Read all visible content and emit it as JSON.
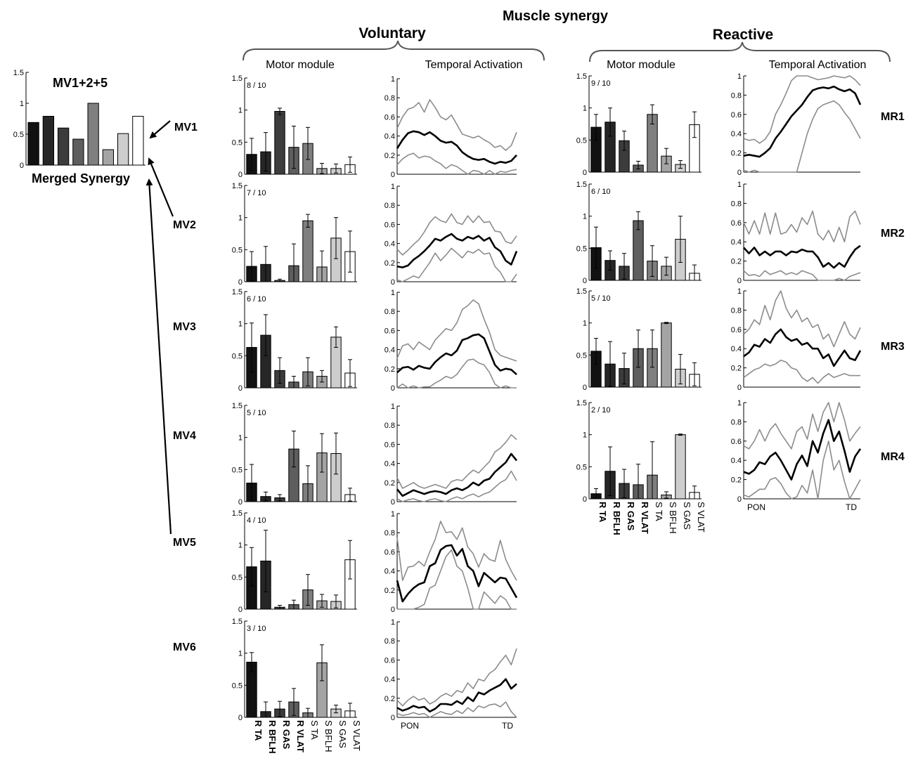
{
  "figure": {
    "title": "Muscle synergy",
    "group_voluntary": "Voluntary",
    "group_reactive": "Reactive",
    "col_motor_module": "Motor module",
    "col_temporal_activation": "Temporal Activation",
    "merged_title": "MV1+2+5",
    "merged_label": "Merged Synergy",
    "x_start_label": "PON",
    "x_end_label": "TD"
  },
  "muscles": [
    "R TA",
    "R BFLH",
    "R GAS",
    "R VLAT",
    "S TA",
    "S BFLH",
    "S GAS",
    "S VLAT"
  ],
  "colors": {
    "bars": [
      "#111111",
      "#262626",
      "#3c3c3c",
      "#5e5e5e",
      "#7f7f7f",
      "#a4a4a4",
      "#cdcdcd",
      "#ffffff"
    ],
    "mean_line": "#000000",
    "sd_line": "#8c8c8c"
  },
  "chart_data": [
    {
      "type": "bar",
      "title": "MV1+2+5",
      "xlabel": "Merged Synergy",
      "categories": [
        "R TA",
        "R BFLH",
        "R GAS",
        "R VLAT",
        "S TA",
        "S BFLH",
        "S GAS",
        "S VLAT"
      ],
      "values": [
        0.69,
        0.79,
        0.6,
        0.42,
        1.0,
        0.25,
        0.51,
        0.79
      ],
      "ylim": [
        0,
        1.5
      ]
    },
    {
      "type": "bar",
      "name": "MV1",
      "count": "8 / 10",
      "categories": [
        "R TA",
        "R BFLH",
        "R GAS",
        "R VLAT",
        "S TA",
        "S BFLH",
        "S GAS",
        "S VLAT"
      ],
      "values": [
        0.31,
        0.35,
        0.98,
        0.42,
        0.48,
        0.09,
        0.09,
        0.15
      ],
      "errors": [
        0.25,
        0.3,
        0.05,
        0.33,
        0.25,
        0.08,
        0.07,
        0.12
      ],
      "ylim": [
        0,
        1.5
      ]
    },
    {
      "type": "bar",
      "name": "MV2",
      "count": "7 / 10",
      "categories": [
        "R TA",
        "R BFLH",
        "R GAS",
        "R VLAT",
        "S TA",
        "S BFLH",
        "S GAS",
        "S VLAT"
      ],
      "values": [
        0.24,
        0.27,
        0.02,
        0.25,
        0.95,
        0.23,
        0.68,
        0.47
      ],
      "errors": [
        0.23,
        0.28,
        0.02,
        0.34,
        0.1,
        0.25,
        0.32,
        0.32
      ],
      "ylim": [
        0,
        1.5
      ]
    },
    {
      "type": "bar",
      "name": "MV3",
      "count": "6 / 10",
      "categories": [
        "R TA",
        "R BFLH",
        "R GAS",
        "R VLAT",
        "S TA",
        "S BFLH",
        "S GAS",
        "S VLAT"
      ],
      "values": [
        0.63,
        0.82,
        0.27,
        0.09,
        0.25,
        0.18,
        0.79,
        0.23
      ],
      "errors": [
        0.38,
        0.32,
        0.2,
        0.09,
        0.22,
        0.09,
        0.16,
        0.21
      ],
      "ylim": [
        0,
        1.5
      ]
    },
    {
      "type": "bar",
      "name": "MV4",
      "count": "5 / 10",
      "categories": [
        "R TA",
        "R BFLH",
        "R GAS",
        "R VLAT",
        "S TA",
        "S BFLH",
        "S GAS",
        "S VLAT"
      ],
      "values": [
        0.29,
        0.08,
        0.06,
        0.82,
        0.28,
        0.76,
        0.75,
        0.11
      ],
      "errors": [
        0.29,
        0.07,
        0.05,
        0.28,
        0.28,
        0.3,
        0.32,
        0.1
      ],
      "ylim": [
        0,
        1.5
      ]
    },
    {
      "type": "bar",
      "name": "MV5",
      "count": "4 / 10",
      "categories": [
        "R TA",
        "R BFLH",
        "R GAS",
        "R VLAT",
        "S TA",
        "S BFLH",
        "S GAS",
        "S VLAT"
      ],
      "values": [
        0.66,
        0.75,
        0.03,
        0.07,
        0.3,
        0.13,
        0.12,
        0.77
      ],
      "errors": [
        0.3,
        0.48,
        0.03,
        0.07,
        0.24,
        0.1,
        0.1,
        0.3
      ],
      "ylim": [
        0,
        1.5
      ]
    },
    {
      "type": "bar",
      "name": "MV6",
      "count": "3 / 10",
      "categories": [
        "R TA",
        "R BFLH",
        "R GAS",
        "R VLAT",
        "S TA",
        "S BFLH",
        "S GAS",
        "S VLAT"
      ],
      "values": [
        0.86,
        0.09,
        0.13,
        0.24,
        0.07,
        0.85,
        0.13,
        0.1
      ],
      "errors": [
        0.15,
        0.15,
        0.12,
        0.21,
        0.07,
        0.28,
        0.06,
        0.12
      ],
      "ylim": [
        0,
        1.5
      ]
    },
    {
      "type": "bar",
      "name": "MR1",
      "count": "9 / 10",
      "categories": [
        "R TA",
        "R BFLH",
        "R GAS",
        "R VLAT",
        "S TA",
        "S BFLH",
        "S GAS",
        "S VLAT"
      ],
      "values": [
        0.7,
        0.78,
        0.49,
        0.11,
        0.9,
        0.25,
        0.12,
        0.74
      ],
      "errors": [
        0.2,
        0.22,
        0.15,
        0.06,
        0.15,
        0.12,
        0.06,
        0.2
      ],
      "ylim": [
        0,
        1.5
      ]
    },
    {
      "type": "bar",
      "name": "MR2",
      "count": "6 / 10",
      "categories": [
        "R TA",
        "R BFLH",
        "R GAS",
        "R VLAT",
        "S TA",
        "S BFLH",
        "S GAS",
        "S VLAT"
      ],
      "values": [
        0.51,
        0.31,
        0.22,
        0.93,
        0.3,
        0.22,
        0.64,
        0.11
      ],
      "errors": [
        0.32,
        0.15,
        0.2,
        0.14,
        0.24,
        0.14,
        0.36,
        0.13
      ],
      "ylim": [
        0,
        1.5
      ]
    },
    {
      "type": "bar",
      "name": "MR3",
      "count": "5 / 10",
      "categories": [
        "R TA",
        "R BFLH",
        "R GAS",
        "R VLAT",
        "S TA",
        "S BFLH",
        "S GAS",
        "S VLAT"
      ],
      "values": [
        0.56,
        0.36,
        0.29,
        0.6,
        0.6,
        1.0,
        0.28,
        0.2
      ],
      "errors": [
        0.2,
        0.35,
        0.24,
        0.29,
        0.29,
        0.01,
        0.23,
        0.18
      ],
      "ylim": [
        0,
        1.5
      ]
    },
    {
      "type": "bar",
      "name": "MR4",
      "count": "2 / 10",
      "categories": [
        "R TA",
        "R BFLH",
        "R GAS",
        "R VLAT",
        "S TA",
        "S BFLH",
        "S GAS",
        "S VLAT"
      ],
      "values": [
        0.08,
        0.43,
        0.24,
        0.22,
        0.37,
        0.06,
        1.0,
        0.1
      ],
      "errors": [
        0.08,
        0.38,
        0.22,
        0.32,
        0.52,
        0.05,
        0.01,
        0.1
      ],
      "ylim": [
        0,
        1.5
      ]
    },
    {
      "type": "line",
      "name": "MV1",
      "ylim": [
        0,
        1
      ],
      "mean": [
        0.27,
        0.36,
        0.43,
        0.45,
        0.44,
        0.41,
        0.44,
        0.4,
        0.35,
        0.33,
        0.34,
        0.3,
        0.23,
        0.19,
        0.16,
        0.15,
        0.16,
        0.13,
        0.11,
        0.13,
        0.12,
        0.14,
        0.2
      ],
      "upper": [
        0.48,
        0.6,
        0.68,
        0.7,
        0.75,
        0.65,
        0.78,
        0.7,
        0.6,
        0.57,
        0.62,
        0.52,
        0.42,
        0.4,
        0.38,
        0.4,
        0.36,
        0.33,
        0.28,
        0.3,
        0.25,
        0.3,
        0.44
      ],
      "lower": [
        0.1,
        0.16,
        0.2,
        0.22,
        0.17,
        0.19,
        0.18,
        0.14,
        0.11,
        0.06,
        0.1,
        0.08,
        0.04,
        0.0,
        0.04,
        0.03,
        0.0,
        0.04,
        0.0,
        0.03,
        0.02,
        0.04,
        0.05
      ]
    },
    {
      "type": "line",
      "name": "MV2",
      "ylim": [
        0,
        1
      ],
      "mean": [
        0.16,
        0.15,
        0.17,
        0.23,
        0.27,
        0.32,
        0.38,
        0.45,
        0.43,
        0.47,
        0.5,
        0.45,
        0.43,
        0.47,
        0.45,
        0.48,
        0.43,
        0.46,
        0.36,
        0.32,
        0.22,
        0.18,
        0.32
      ],
      "upper": [
        0.34,
        0.28,
        0.33,
        0.39,
        0.44,
        0.52,
        0.62,
        0.68,
        0.64,
        0.62,
        0.71,
        0.62,
        0.6,
        0.69,
        0.62,
        0.69,
        0.62,
        0.63,
        0.53,
        0.52,
        0.42,
        0.4,
        0.48
      ],
      "lower": [
        0.02,
        0.0,
        0.03,
        0.06,
        0.04,
        0.12,
        0.2,
        0.3,
        0.22,
        0.28,
        0.35,
        0.3,
        0.25,
        0.32,
        0.3,
        0.34,
        0.29,
        0.3,
        0.16,
        0.1,
        0.0,
        0.0,
        0.08
      ]
    },
    {
      "type": "line",
      "name": "MV3",
      "ylim": [
        0,
        1
      ],
      "mean": [
        0.16,
        0.21,
        0.22,
        0.19,
        0.23,
        0.21,
        0.2,
        0.27,
        0.32,
        0.36,
        0.34,
        0.39,
        0.5,
        0.52,
        0.55,
        0.56,
        0.52,
        0.38,
        0.24,
        0.18,
        0.2,
        0.19,
        0.14
      ],
      "upper": [
        0.31,
        0.44,
        0.46,
        0.4,
        0.48,
        0.44,
        0.4,
        0.5,
        0.56,
        0.62,
        0.6,
        0.68,
        0.82,
        0.86,
        0.92,
        0.88,
        0.72,
        0.58,
        0.4,
        0.34,
        0.32,
        0.3,
        0.28
      ],
      "lower": [
        0.0,
        0.04,
        0.0,
        0.02,
        0.0,
        0.01,
        0.01,
        0.05,
        0.08,
        0.12,
        0.1,
        0.14,
        0.22,
        0.29,
        0.3,
        0.26,
        0.24,
        0.16,
        0.04,
        0.0,
        0.02,
        0.0,
        0.0
      ]
    },
    {
      "type": "line",
      "name": "MV4",
      "ylim": [
        0,
        1
      ],
      "mean": [
        0.13,
        0.06,
        0.09,
        0.12,
        0.1,
        0.08,
        0.1,
        0.11,
        0.1,
        0.08,
        0.12,
        0.14,
        0.12,
        0.15,
        0.2,
        0.17,
        0.22,
        0.24,
        0.31,
        0.36,
        0.41,
        0.5,
        0.43
      ],
      "upper": [
        0.25,
        0.14,
        0.17,
        0.2,
        0.16,
        0.14,
        0.16,
        0.18,
        0.16,
        0.14,
        0.21,
        0.23,
        0.22,
        0.28,
        0.33,
        0.3,
        0.36,
        0.42,
        0.52,
        0.56,
        0.62,
        0.7,
        0.65
      ],
      "lower": [
        0.03,
        0.0,
        0.02,
        0.03,
        0.01,
        0.0,
        0.02,
        0.03,
        0.01,
        0.0,
        0.03,
        0.05,
        0.03,
        0.06,
        0.08,
        0.05,
        0.08,
        0.1,
        0.15,
        0.2,
        0.23,
        0.32,
        0.22
      ]
    },
    {
      "type": "line",
      "name": "MV5",
      "ylim": [
        0,
        1
      ],
      "mean": [
        0.3,
        0.08,
        0.16,
        0.22,
        0.26,
        0.28,
        0.45,
        0.48,
        0.62,
        0.66,
        0.67,
        0.56,
        0.63,
        0.45,
        0.4,
        0.24,
        0.38,
        0.33,
        0.28,
        0.33,
        0.32,
        0.22,
        0.12
      ],
      "upper": [
        0.75,
        0.3,
        0.44,
        0.45,
        0.5,
        0.45,
        0.6,
        0.73,
        0.92,
        0.8,
        0.81,
        0.73,
        0.85,
        0.65,
        0.58,
        0.44,
        0.58,
        0.52,
        0.5,
        0.72,
        0.52,
        0.4,
        0.3
      ],
      "lower": [
        0.0,
        0.0,
        0.0,
        0.0,
        0.02,
        0.05,
        0.22,
        0.25,
        0.4,
        0.55,
        0.62,
        0.45,
        0.4,
        0.22,
        0.0,
        0.0,
        0.18,
        0.12,
        0.06,
        0.14,
        0.1,
        0.0,
        0.0
      ]
    },
    {
      "type": "line",
      "name": "MV6",
      "ylim": [
        0,
        1
      ],
      "mean": [
        0.1,
        0.07,
        0.09,
        0.12,
        0.1,
        0.11,
        0.06,
        0.09,
        0.14,
        0.14,
        0.13,
        0.17,
        0.14,
        0.21,
        0.17,
        0.26,
        0.24,
        0.28,
        0.31,
        0.34,
        0.4,
        0.3,
        0.35
      ],
      "upper": [
        0.18,
        0.12,
        0.18,
        0.22,
        0.18,
        0.2,
        0.14,
        0.17,
        0.22,
        0.25,
        0.22,
        0.28,
        0.26,
        0.36,
        0.3,
        0.4,
        0.38,
        0.46,
        0.5,
        0.58,
        0.65,
        0.55,
        0.72
      ],
      "lower": [
        0.04,
        0.02,
        0.03,
        0.05,
        0.03,
        0.04,
        0.0,
        0.03,
        0.06,
        0.04,
        0.03,
        0.07,
        0.04,
        0.1,
        0.06,
        0.12,
        0.1,
        0.13,
        0.14,
        0.11,
        0.16,
        0.06,
        0.0
      ]
    },
    {
      "type": "line",
      "name": "MR1",
      "ylim": [
        0,
        1
      ],
      "mean": [
        0.17,
        0.18,
        0.17,
        0.16,
        0.2,
        0.25,
        0.35,
        0.42,
        0.5,
        0.58,
        0.64,
        0.7,
        0.78,
        0.85,
        0.87,
        0.88,
        0.87,
        0.89,
        0.86,
        0.84,
        0.86,
        0.82,
        0.7
      ],
      "upper": [
        0.35,
        0.33,
        0.34,
        0.3,
        0.34,
        0.42,
        0.6,
        0.7,
        0.82,
        0.95,
        1.0,
        1.0,
        1.0,
        0.98,
        0.96,
        0.97,
        0.98,
        1.0,
        0.99,
        0.98,
        1.0,
        0.96,
        0.9
      ],
      "lower": [
        0.02,
        0.0,
        0.02,
        0.0,
        0.0,
        0.0,
        0.0,
        0.0,
        0.0,
        0.0,
        0.0,
        0.2,
        0.4,
        0.55,
        0.66,
        0.7,
        0.72,
        0.74,
        0.7,
        0.62,
        0.55,
        0.45,
        0.35
      ]
    },
    {
      "type": "line",
      "name": "MR2",
      "ylim": [
        0,
        1
      ],
      "mean": [
        0.34,
        0.28,
        0.34,
        0.26,
        0.3,
        0.26,
        0.3,
        0.3,
        0.26,
        0.3,
        0.29,
        0.32,
        0.3,
        0.3,
        0.24,
        0.14,
        0.18,
        0.13,
        0.18,
        0.14,
        0.24,
        0.32,
        0.36
      ],
      "upper": [
        0.6,
        0.48,
        0.62,
        0.48,
        0.7,
        0.48,
        0.7,
        0.48,
        0.5,
        0.58,
        0.5,
        0.65,
        0.58,
        0.72,
        0.48,
        0.42,
        0.52,
        0.4,
        0.55,
        0.4,
        0.66,
        0.72,
        0.58
      ],
      "lower": [
        0.1,
        0.05,
        0.06,
        0.04,
        0.1,
        0.06,
        0.08,
        0.1,
        0.06,
        0.08,
        0.06,
        0.1,
        0.08,
        0.06,
        0.0,
        0.0,
        0.0,
        0.0,
        0.02,
        0.0,
        0.04,
        0.06,
        0.08
      ]
    },
    {
      "type": "line",
      "name": "MR3",
      "ylim": [
        0,
        1
      ],
      "mean": [
        0.32,
        0.36,
        0.44,
        0.42,
        0.5,
        0.46,
        0.55,
        0.6,
        0.52,
        0.48,
        0.5,
        0.44,
        0.46,
        0.4,
        0.4,
        0.3,
        0.34,
        0.22,
        0.3,
        0.38,
        0.3,
        0.28,
        0.38
      ],
      "upper": [
        0.55,
        0.6,
        0.7,
        0.65,
        0.85,
        0.7,
        0.9,
        1.0,
        0.82,
        0.72,
        0.8,
        0.68,
        0.72,
        0.62,
        0.65,
        0.5,
        0.55,
        0.42,
        0.55,
        0.68,
        0.55,
        0.5,
        0.62
      ],
      "lower": [
        0.1,
        0.14,
        0.18,
        0.2,
        0.24,
        0.22,
        0.24,
        0.28,
        0.26,
        0.2,
        0.18,
        0.1,
        0.06,
        0.1,
        0.04,
        0.1,
        0.14,
        0.1,
        0.12,
        0.14,
        0.12,
        0.12,
        0.12
      ]
    },
    {
      "type": "line",
      "name": "MR4",
      "ylim": [
        0,
        1
      ],
      "mean": [
        0.28,
        0.26,
        0.3,
        0.38,
        0.36,
        0.44,
        0.48,
        0.4,
        0.3,
        0.2,
        0.36,
        0.45,
        0.34,
        0.6,
        0.48,
        0.68,
        0.82,
        0.6,
        0.7,
        0.5,
        0.28,
        0.44,
        0.52
      ],
      "upper": [
        0.55,
        0.52,
        0.6,
        0.72,
        0.6,
        0.72,
        0.78,
        0.68,
        0.6,
        0.52,
        0.7,
        0.75,
        0.62,
        0.88,
        0.7,
        0.9,
        1.0,
        0.8,
        1.0,
        0.82,
        0.6,
        0.68,
        0.75
      ],
      "lower": [
        0.04,
        0.02,
        0.06,
        0.1,
        0.1,
        0.2,
        0.22,
        0.16,
        0.06,
        0.0,
        0.02,
        0.14,
        0.06,
        0.3,
        0.0,
        0.4,
        0.6,
        0.3,
        0.4,
        0.18,
        0.0,
        0.1,
        0.2
      ]
    }
  ],
  "labels": {
    "voluntary": [
      "MV1",
      "MV2",
      "MV3",
      "MV4",
      "MV5",
      "MV6"
    ],
    "reactive": [
      "MR1",
      "MR2",
      "MR3",
      "MR4"
    ]
  }
}
